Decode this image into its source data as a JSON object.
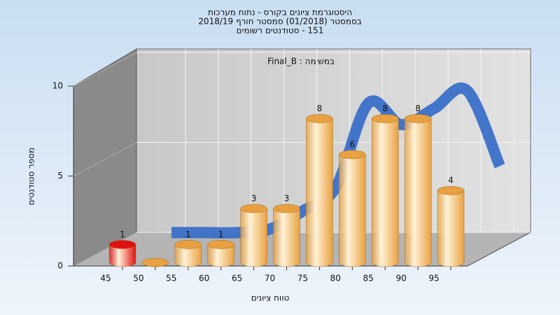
{
  "chart_data": {
    "type": "bar",
    "title": [
      "היסטוגרמת ציונים בקורס - נתוח מערכות",
      "בסמסטר  (01/2018)  סמסטר חורף 2018/19",
      "151 - סטודנטים רשומים"
    ],
    "subtitle": "במשימה : Final_B",
    "x_label": "טווח ציונים",
    "y_label": "מספר סטודנטים",
    "categories": [
      "45",
      "50",
      "55",
      "60",
      "65",
      "70",
      "75",
      "80",
      "85",
      "90",
      "95"
    ],
    "values": [
      1,
      0,
      1,
      1,
      3,
      3,
      8,
      6,
      8,
      8,
      4
    ],
    "colors": [
      "#e01010",
      "#e8a040",
      "#e8a040",
      "#e8a040",
      "#e8a040",
      "#e8a040",
      "#e8a040",
      "#e8a040",
      "#e8a040",
      "#e8a040",
      "#e8a040"
    ],
    "curve": {
      "color": "#3a70c8",
      "values": [
        0.3,
        0.3,
        0.3,
        0.5,
        1.5,
        2.8,
        7.5,
        6.3,
        7.2,
        8.2,
        4.0
      ]
    },
    "ylim": [
      0,
      10
    ],
    "yticks": [
      0,
      5,
      10
    ],
    "grid": true
  }
}
